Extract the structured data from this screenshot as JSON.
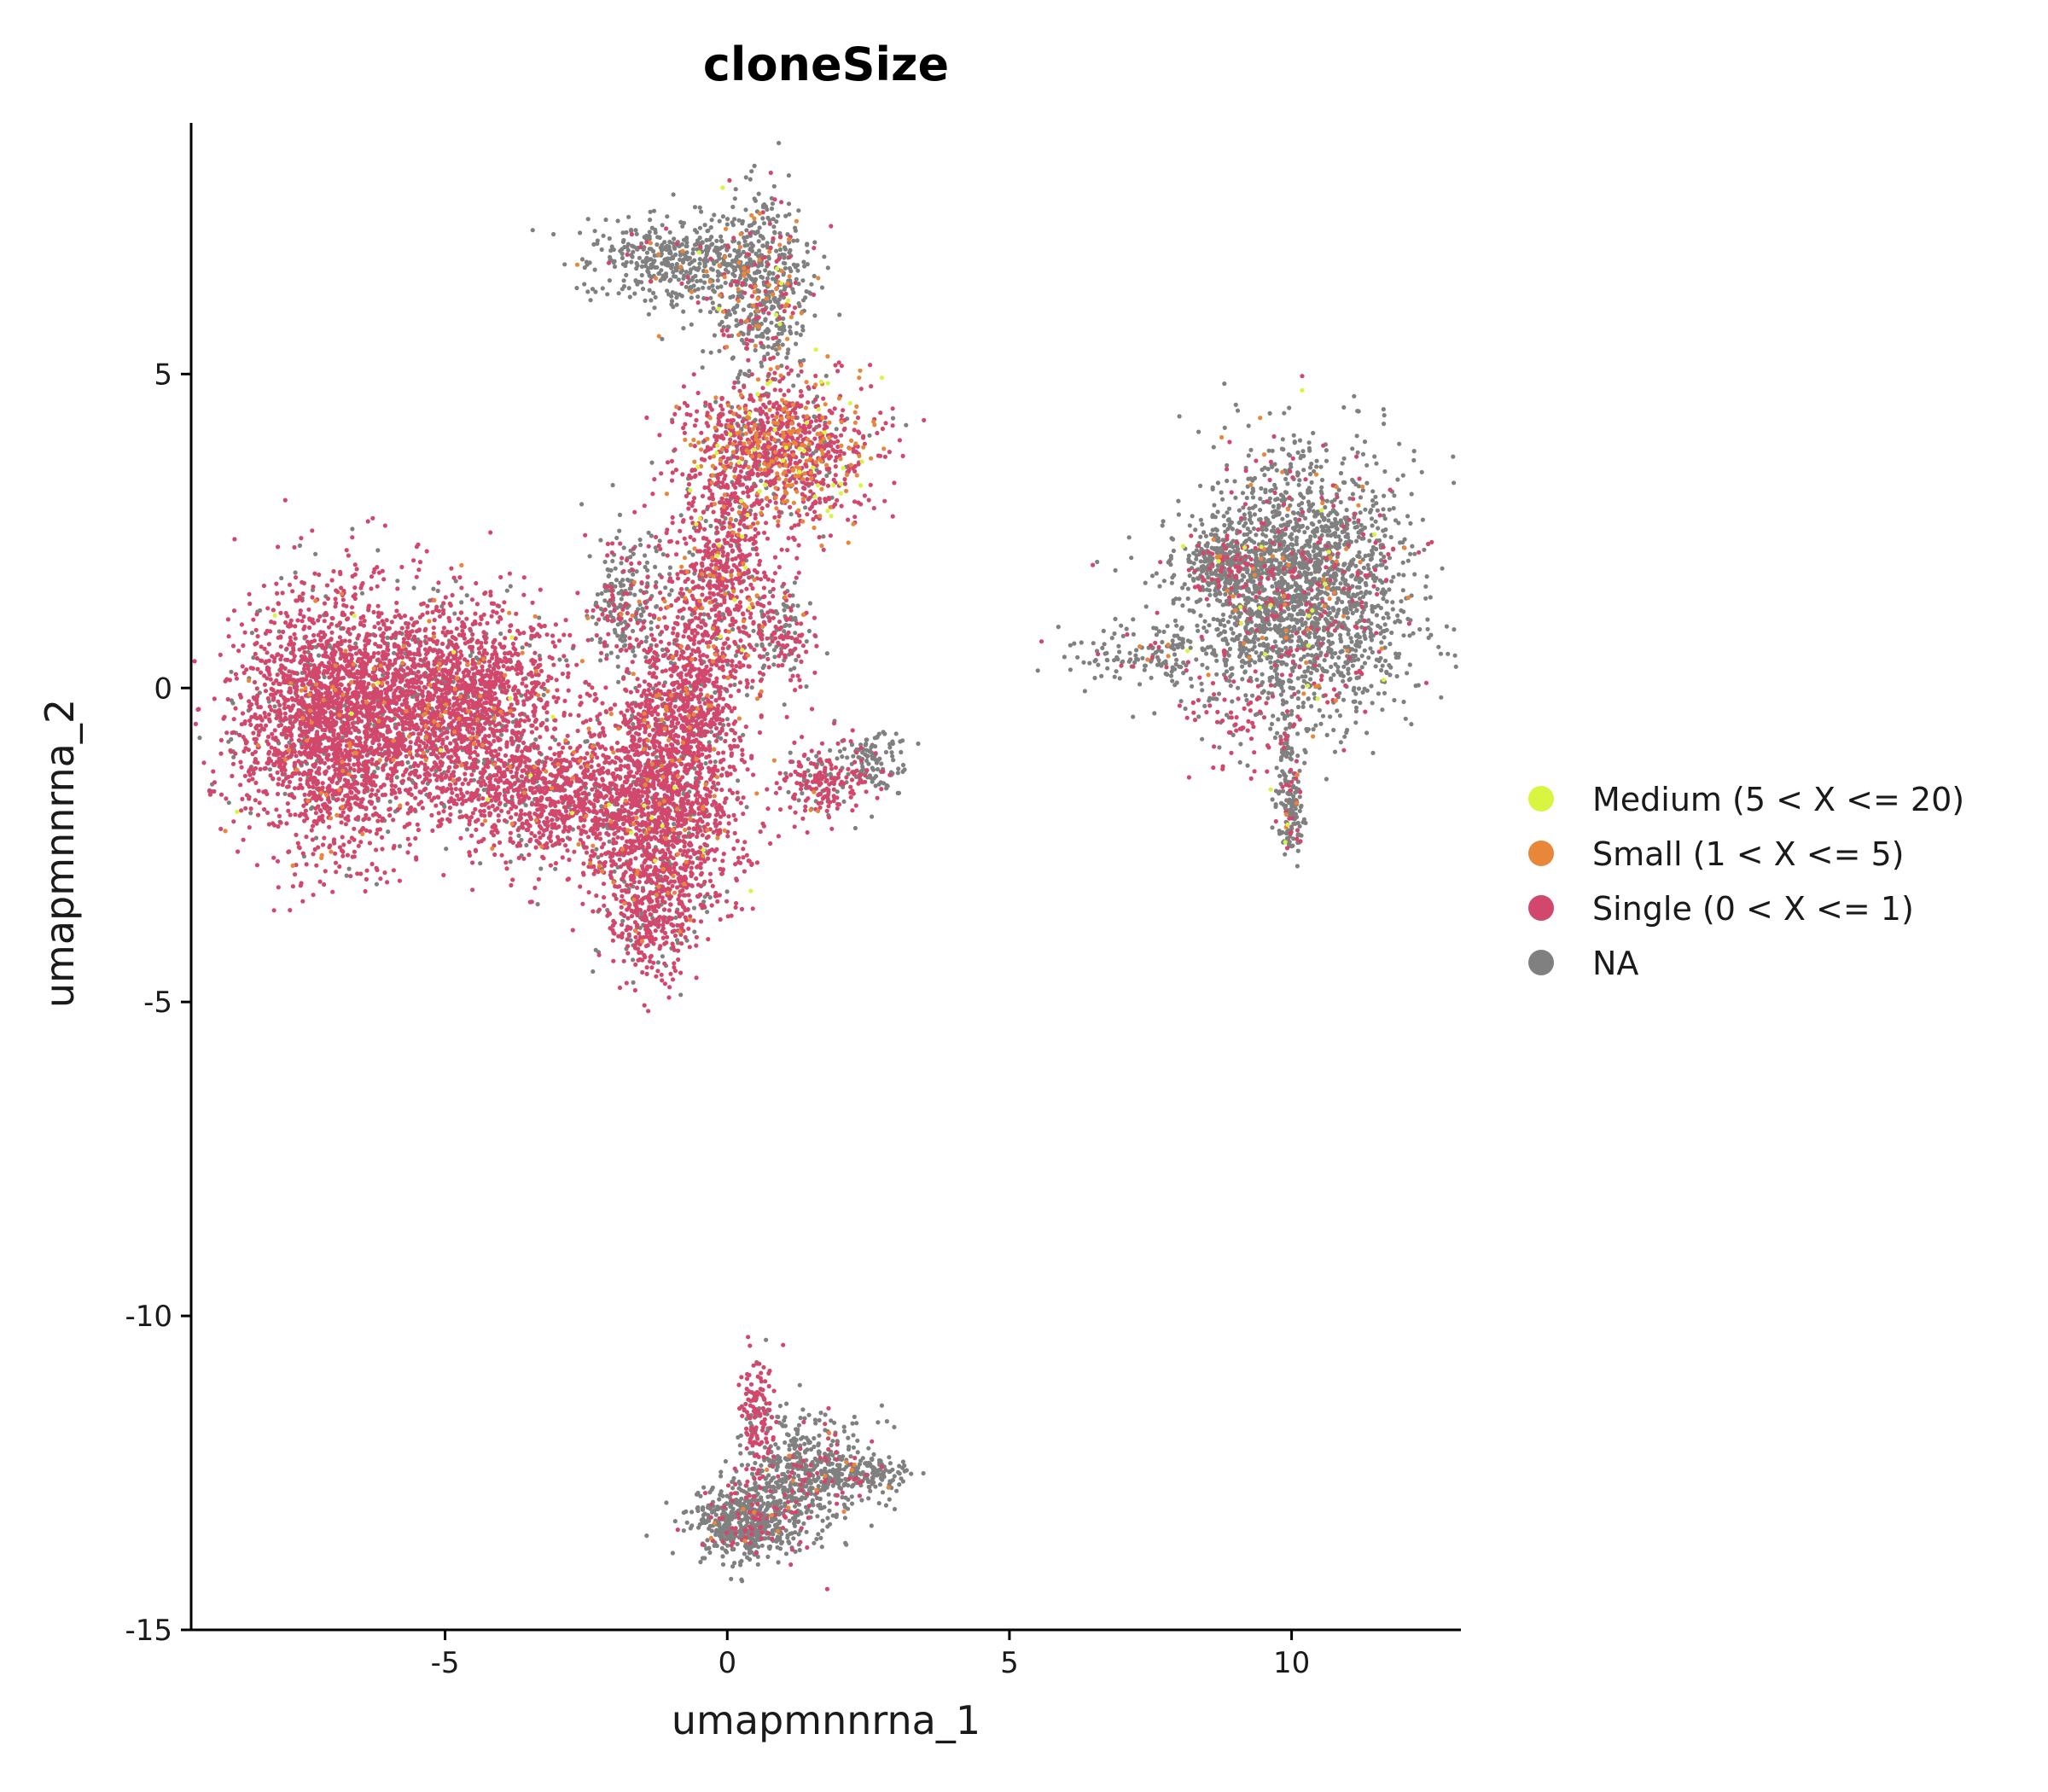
{
  "chart_data": {
    "type": "scatter",
    "title": "cloneSize",
    "xlabel": "umapmnnrna_1",
    "ylabel": "umapmnnrna_2",
    "xlim": [
      -9.5,
      13
    ],
    "ylim": [
      -15,
      9
    ],
    "x_ticks": [
      -5,
      0,
      5,
      10
    ],
    "y_ticks": [
      -15,
      -10,
      -5,
      0,
      5
    ],
    "x_tick_labels": [
      "-5",
      "0",
      "5",
      "10"
    ],
    "y_tick_labels": [
      "-15",
      "-10",
      "-5",
      "0",
      "5"
    ],
    "grid": false,
    "legend_position": "right",
    "point_color_note": "cells colored by clone size category",
    "series": [
      {
        "name": "Medium (5 < X <= 20)",
        "color": "#d9f542"
      },
      {
        "name": "Small (1 < X <= 5)",
        "color": "#e8873a"
      },
      {
        "name": "Single (0 < X <= 1)",
        "color": "#d1486c"
      },
      {
        "name": "NA",
        "color": "#808080"
      }
    ],
    "clusters": [
      {
        "cx": -7.0,
        "cy": -0.5,
        "sx": 0.85,
        "sy": 1.0,
        "n": 2400,
        "mix": [
          0.004,
          0.03,
          0.87,
          0.096
        ]
      },
      {
        "cx": -4.7,
        "cy": -0.3,
        "sx": 0.9,
        "sy": 0.85,
        "n": 1900,
        "mix": [
          0.004,
          0.03,
          0.84,
          0.126
        ]
      },
      {
        "cx": -3.0,
        "cy": -1.8,
        "sx": 0.8,
        "sy": 0.45,
        "n": 700,
        "mix": [
          0.003,
          0.02,
          0.86,
          0.117
        ]
      },
      {
        "cx": -1.2,
        "cy": -2.0,
        "sx": 0.7,
        "sy": 0.9,
        "n": 1500,
        "mix": [
          0.004,
          0.04,
          0.85,
          0.106
        ]
      },
      {
        "cx": -0.8,
        "cy": -0.2,
        "sx": 0.5,
        "sy": 0.7,
        "n": 700,
        "mix": [
          0.004,
          0.04,
          0.83,
          0.126
        ]
      },
      {
        "cx": -1.4,
        "cy": -3.6,
        "sx": 0.35,
        "sy": 0.5,
        "n": 300,
        "mix": [
          0.003,
          0.03,
          0.8,
          0.167
        ]
      },
      {
        "cx": -0.1,
        "cy": 1.8,
        "sx": 0.5,
        "sy": 0.9,
        "n": 700,
        "mix": [
          0.01,
          0.07,
          0.8,
          0.12
        ]
      },
      {
        "cx": 0.9,
        "cy": 3.8,
        "sx": 0.8,
        "sy": 0.6,
        "n": 1100,
        "mix": [
          0.03,
          0.18,
          0.69,
          0.1
        ]
      },
      {
        "cx": 0.6,
        "cy": 6.4,
        "sx": 0.45,
        "sy": 0.7,
        "n": 550,
        "mix": [
          0.02,
          0.1,
          0.14,
          0.74
        ]
      },
      {
        "cx": -0.9,
        "cy": 6.8,
        "sx": 0.8,
        "sy": 0.35,
        "n": 450,
        "mix": [
          0.0,
          0.02,
          0.03,
          0.95
        ]
      },
      {
        "cx": -1.8,
        "cy": 1.4,
        "sx": 0.35,
        "sy": 0.6,
        "n": 250,
        "mix": [
          0.0,
          0.02,
          0.35,
          0.63
        ]
      },
      {
        "cx": 1.0,
        "cy": 0.8,
        "sx": 0.3,
        "sy": 0.4,
        "n": 150,
        "mix": [
          0.0,
          0.02,
          0.5,
          0.48
        ]
      },
      {
        "cx": 1.7,
        "cy": -1.5,
        "sx": 0.4,
        "sy": 0.3,
        "n": 200,
        "mix": [
          0.0,
          0.02,
          0.75,
          0.23
        ]
      },
      {
        "cx": 2.6,
        "cy": -1.1,
        "sx": 0.35,
        "sy": 0.25,
        "n": 120,
        "mix": [
          0.0,
          0.0,
          0.1,
          0.9
        ]
      },
      {
        "cx": 10.1,
        "cy": 1.6,
        "sx": 1.0,
        "sy": 1.0,
        "n": 2300,
        "mix": [
          0.01,
          0.02,
          0.1,
          0.87
        ]
      },
      {
        "cx": 8.8,
        "cy": 2.0,
        "sx": 0.35,
        "sy": 0.25,
        "n": 250,
        "mix": [
          0.0,
          0.01,
          0.12,
          0.87
        ]
      },
      {
        "cx": 7.5,
        "cy": 0.5,
        "sx": 0.7,
        "sy": 0.25,
        "n": 140,
        "mix": [
          0.0,
          0.02,
          0.05,
          0.93
        ]
      },
      {
        "cx": 8.9,
        "cy": -0.6,
        "sx": 0.6,
        "sy": 0.5,
        "n": 70,
        "mix": [
          0.0,
          0.0,
          0.8,
          0.2
        ]
      },
      {
        "cx": 10.0,
        "cy": -2.0,
        "sx": 0.12,
        "sy": 0.35,
        "n": 130,
        "mix": [
          0.05,
          0.03,
          0.1,
          0.82
        ]
      },
      {
        "cx": 9.9,
        "cy": -0.9,
        "sx": 0.1,
        "sy": 0.5,
        "n": 60,
        "mix": [
          0.0,
          0.0,
          0.2,
          0.8
        ]
      },
      {
        "cx": 0.3,
        "cy": -13.3,
        "sx": 0.45,
        "sy": 0.3,
        "n": 550,
        "mix": [
          0.0,
          0.02,
          0.1,
          0.88
        ]
      },
      {
        "cx": 1.4,
        "cy": -12.5,
        "sx": 0.6,
        "sy": 0.45,
        "n": 550,
        "mix": [
          0.0,
          0.02,
          0.12,
          0.86
        ]
      },
      {
        "cx": 0.5,
        "cy": -11.5,
        "sx": 0.15,
        "sy": 0.45,
        "n": 130,
        "mix": [
          0.0,
          0.02,
          0.85,
          0.13
        ]
      },
      {
        "cx": 2.5,
        "cy": -12.5,
        "sx": 0.4,
        "sy": 0.15,
        "n": 120,
        "mix": [
          0.0,
          0.02,
          0.05,
          0.93
        ]
      }
    ]
  }
}
